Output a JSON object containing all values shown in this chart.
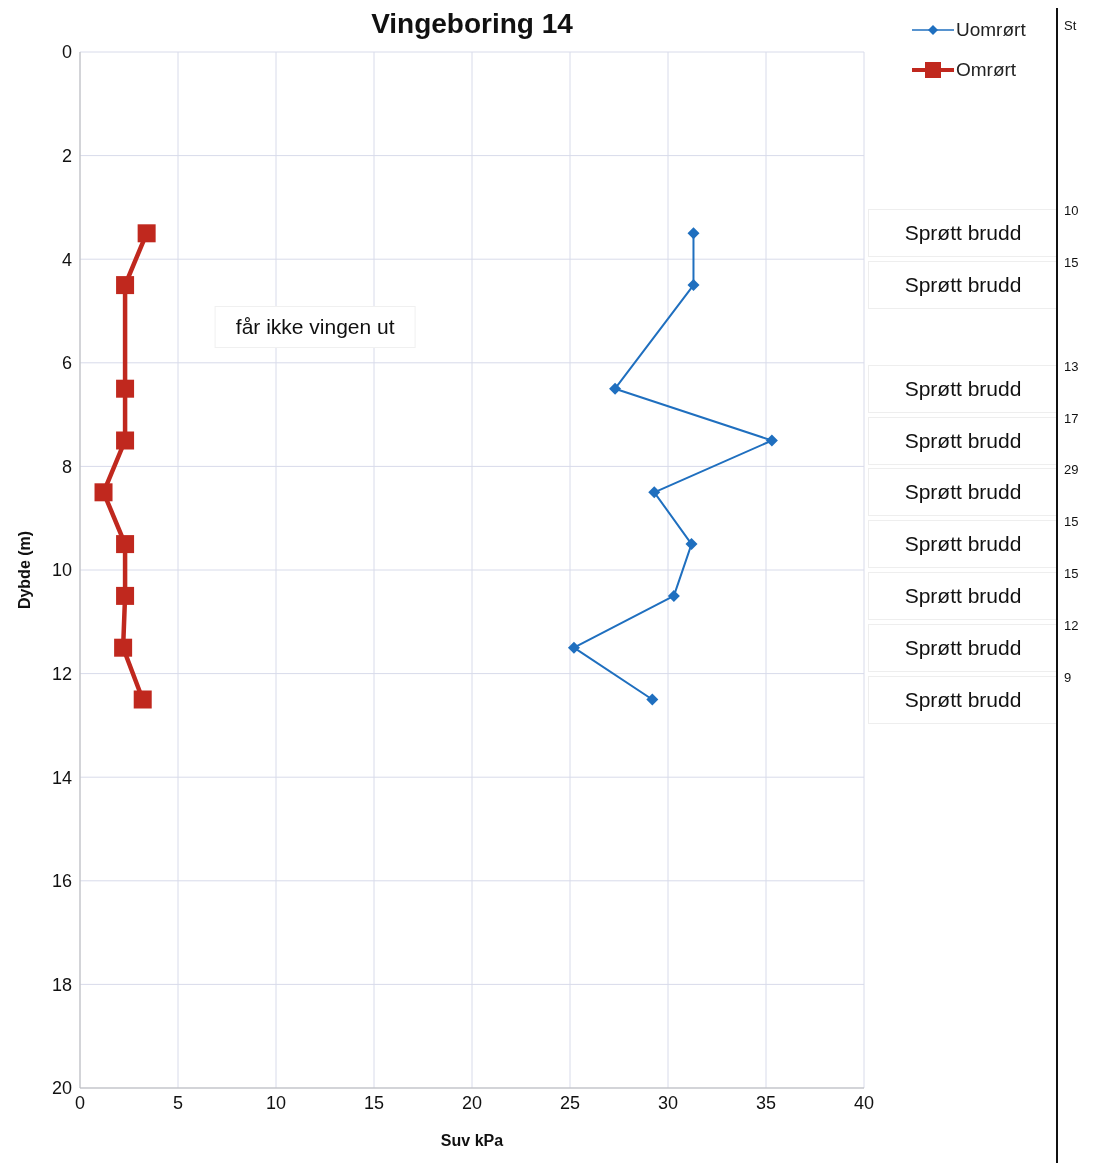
{
  "chart_data": {
    "type": "line",
    "title": "Vingeboring 14",
    "xlabel": "Suv kPa",
    "ylabel": "Dybde (m)",
    "xlim": [
      0,
      40
    ],
    "xticks": [
      0,
      5,
      10,
      15,
      20,
      25,
      30,
      35,
      40
    ],
    "ylim": [
      20,
      0
    ],
    "yticks": [
      0,
      2,
      4,
      6,
      8,
      10,
      12,
      14,
      16,
      18,
      20
    ],
    "grid": true,
    "legend": "top right",
    "line_style": "solid",
    "series": [
      {
        "name": "Uomrørt",
        "color": "#1f6fbf",
        "marker": "diamond",
        "x": [
          31.3,
          31.3,
          27.3,
          35.3,
          29.3,
          31.2,
          30.3,
          25.2,
          29.2
        ],
        "values": [
          3.5,
          4.5,
          6.5,
          7.5,
          8.5,
          9.5,
          10.5,
          11.5,
          12.5
        ]
      },
      {
        "name": "Omrørt",
        "color": "#c0281e",
        "marker": "square",
        "x": [
          3.4,
          2.3,
          2.3,
          2.3,
          1.2,
          2.3,
          2.3,
          2.2,
          3.2
        ],
        "values": [
          3.5,
          4.5,
          6.5,
          7.5,
          8.5,
          9.5,
          10.5,
          11.5,
          12.5
        ]
      }
    ],
    "annotations": [
      "får ikke vingen ut",
      "Sprøtt brudd",
      "Sprøtt brudd",
      "Sprøtt brudd",
      "Sprøtt brudd",
      "Sprøtt brudd",
      "Sprøtt brudd",
      "Sprøtt brudd",
      "Sprøtt brudd",
      "Sprøtt brudd",
      "St",
      "10",
      "15",
      "13",
      "17",
      "29",
      "15",
      "15",
      "12",
      "9"
    ]
  }
}
